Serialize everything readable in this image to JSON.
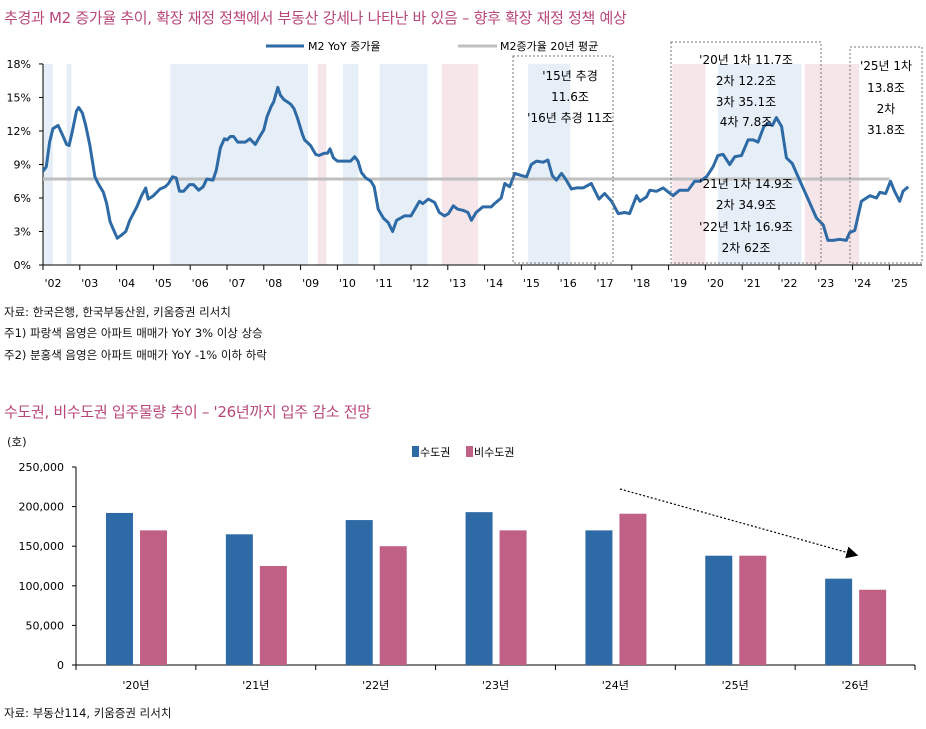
{
  "colors": {
    "title": "#b8477a",
    "m2_line": "#2e6aa6",
    "avg_line": "#bfbfbf",
    "shade_up": "#e6eef7",
    "shade_down": "#f6e6ea",
    "bar_capital": "#2e6aa6",
    "bar_noncapital": "#c06085"
  },
  "chart1": {
    "title": "추경과 M2 증가율 추이, 확장 재정 정책에서 부동산 강세나 나타난 바 있음 – 향후 확장 재정 정책 예상",
    "notes": [
      "자료: 한국은행, 한국부동산원, 키움증권 리서치",
      "주1) 파랑색 음영은 아파트 매매가 YoY 3% 이상 상승",
      "주2) 분홍색 음영은 아파트 매매가 YoY -1% 이하 하락"
    ],
    "annotations": {
      "box2015": [
        "'15년 추경",
        "11.6조",
        "'16년 추경 11조"
      ],
      "box2020_top": [
        "'20년 1차 11.7조",
        "2차 12.2조",
        "3차 35.1조",
        "4차 7.8조"
      ],
      "box2020_bottom": [
        "'21년 1차 14.9조",
        "2차 34.9조",
        "'22년 1차 16.9조",
        "2차 62조"
      ],
      "box2025": [
        "'25년 1차",
        "13.8조",
        "2차",
        "31.8조"
      ]
    }
  },
  "chart_data": [
    {
      "type": "line",
      "title": "",
      "xlabel": "",
      "ylabel": "",
      "xlim": [
        2002,
        2025.9
      ],
      "ylim": [
        0,
        18
      ],
      "x_tick_labels": [
        "'02",
        "'03",
        "'04",
        "'05",
        "'06",
        "'07",
        "'08",
        "'09",
        "'10",
        "'11",
        "'12",
        "'13",
        "'14",
        "'15",
        "'16",
        "'17",
        "'18",
        "'19",
        "'20",
        "'21",
        "'22",
        "'23",
        "'24",
        "'25"
      ],
      "y_tick_labels": [
        "0%",
        "3%",
        "6%",
        "9%",
        "12%",
        "15%",
        "18%"
      ],
      "y_ticks": [
        0,
        3,
        6,
        9,
        12,
        15,
        18
      ],
      "legend": {
        "placement": "top",
        "entries": [
          "M2 YoY 증가율",
          "M2증가율 20년 평균"
        ]
      },
      "series": [
        {
          "name": "M2 YoY 증가율",
          "points": [
            [
              2002.0,
              8.4
            ],
            [
              2002.09,
              8.8
            ],
            [
              2002.18,
              11.0
            ],
            [
              2002.27,
              12.2
            ],
            [
              2002.41,
              12.5
            ],
            [
              2002.55,
              11.5
            ],
            [
              2002.64,
              10.8
            ],
            [
              2002.71,
              10.7
            ],
            [
              2002.8,
              12.0
            ],
            [
              2002.91,
              13.8
            ],
            [
              2002.97,
              14.1
            ],
            [
              2003.07,
              13.6
            ],
            [
              2003.16,
              12.5
            ],
            [
              2003.27,
              10.8
            ],
            [
              2003.41,
              7.9
            ],
            [
              2003.5,
              7.3
            ],
            [
              2003.64,
              6.5
            ],
            [
              2003.73,
              5.5
            ],
            [
              2003.82,
              3.9
            ],
            [
              2003.91,
              3.2
            ],
            [
              2004.02,
              2.4
            ],
            [
              2004.14,
              2.7
            ],
            [
              2004.25,
              3.0
            ],
            [
              2004.36,
              4.0
            ],
            [
              2004.55,
              5.2
            ],
            [
              2004.68,
              6.2
            ],
            [
              2004.79,
              6.9
            ],
            [
              2004.86,
              5.9
            ],
            [
              2005.0,
              6.2
            ],
            [
              2005.18,
              6.8
            ],
            [
              2005.32,
              7.0
            ],
            [
              2005.41,
              7.3
            ],
            [
              2005.52,
              7.9
            ],
            [
              2005.62,
              7.8
            ],
            [
              2005.71,
              6.6
            ],
            [
              2005.82,
              6.6
            ],
            [
              2005.98,
              7.2
            ],
            [
              2006.09,
              7.2
            ],
            [
              2006.23,
              6.7
            ],
            [
              2006.35,
              7.0
            ],
            [
              2006.45,
              7.7
            ],
            [
              2006.62,
              7.6
            ],
            [
              2006.71,
              8.5
            ],
            [
              2006.82,
              10.5
            ],
            [
              2006.93,
              11.3
            ],
            [
              2007.0,
              11.2
            ],
            [
              2007.09,
              11.5
            ],
            [
              2007.18,
              11.5
            ],
            [
              2007.29,
              11.0
            ],
            [
              2007.5,
              11.0
            ],
            [
              2007.62,
              11.3
            ],
            [
              2007.77,
              10.8
            ],
            [
              2007.89,
              11.5
            ],
            [
              2008.0,
              12.1
            ],
            [
              2008.09,
              13.3
            ],
            [
              2008.2,
              14.2
            ],
            [
              2008.27,
              14.6
            ],
            [
              2008.38,
              15.9
            ],
            [
              2008.45,
              15.2
            ],
            [
              2008.55,
              14.8
            ],
            [
              2008.64,
              14.6
            ],
            [
              2008.73,
              14.4
            ],
            [
              2008.82,
              14.0
            ],
            [
              2008.91,
              13.2
            ],
            [
              2009.05,
              11.7
            ],
            [
              2009.11,
              11.2
            ],
            [
              2009.27,
              10.7
            ],
            [
              2009.41,
              9.9
            ],
            [
              2009.5,
              9.8
            ],
            [
              2009.64,
              10.0
            ],
            [
              2009.73,
              10.0
            ],
            [
              2009.8,
              10.4
            ],
            [
              2009.89,
              9.6
            ],
            [
              2010.0,
              9.3
            ],
            [
              2010.18,
              9.3
            ],
            [
              2010.36,
              9.3
            ],
            [
              2010.47,
              9.7
            ],
            [
              2010.56,
              9.3
            ],
            [
              2010.65,
              8.3
            ],
            [
              2010.77,
              7.8
            ],
            [
              2010.91,
              7.5
            ],
            [
              2011.0,
              7.0
            ],
            [
              2011.11,
              5.0
            ],
            [
              2011.25,
              4.2
            ],
            [
              2011.38,
              3.8
            ],
            [
              2011.5,
              3.0
            ],
            [
              2011.61,
              4.0
            ],
            [
              2011.82,
              4.4
            ],
            [
              2012.0,
              4.4
            ],
            [
              2012.14,
              5.2
            ],
            [
              2012.23,
              5.7
            ],
            [
              2012.32,
              5.5
            ],
            [
              2012.47,
              5.9
            ],
            [
              2012.64,
              5.6
            ],
            [
              2012.77,
              4.7
            ],
            [
              2012.91,
              4.4
            ],
            [
              2013.02,
              4.6
            ],
            [
              2013.15,
              5.3
            ],
            [
              2013.27,
              5.0
            ],
            [
              2013.41,
              4.9
            ],
            [
              2013.55,
              4.7
            ],
            [
              2013.64,
              4.0
            ],
            [
              2013.77,
              4.7
            ],
            [
              2013.95,
              5.2
            ],
            [
              2014.18,
              5.2
            ],
            [
              2014.27,
              5.5
            ],
            [
              2014.45,
              6.0
            ],
            [
              2014.55,
              7.3
            ],
            [
              2014.68,
              7.0
            ],
            [
              2014.82,
              8.2
            ],
            [
              2015.0,
              8.0
            ],
            [
              2015.14,
              7.9
            ],
            [
              2015.27,
              9.0
            ],
            [
              2015.41,
              9.3
            ],
            [
              2015.59,
              9.2
            ],
            [
              2015.72,
              9.4
            ],
            [
              2015.84,
              8.0
            ],
            [
              2015.95,
              7.6
            ],
            [
              2016.09,
              8.2
            ],
            [
              2016.22,
              7.6
            ],
            [
              2016.36,
              6.8
            ],
            [
              2016.49,
              6.9
            ],
            [
              2016.68,
              6.9
            ],
            [
              2016.9,
              7.3
            ],
            [
              2017.11,
              5.9
            ],
            [
              2017.26,
              6.4
            ],
            [
              2017.45,
              5.7
            ],
            [
              2017.63,
              4.6
            ],
            [
              2017.81,
              4.7
            ],
            [
              2017.94,
              4.6
            ],
            [
              2018.13,
              6.2
            ],
            [
              2018.22,
              5.7
            ],
            [
              2018.4,
              6.1
            ],
            [
              2018.49,
              6.7
            ],
            [
              2018.67,
              6.6
            ],
            [
              2018.85,
              6.9
            ],
            [
              2019.12,
              6.2
            ],
            [
              2019.3,
              6.7
            ],
            [
              2019.53,
              6.7
            ],
            [
              2019.71,
              7.5
            ],
            [
              2019.85,
              7.5
            ],
            [
              2020.03,
              7.9
            ],
            [
              2020.21,
              8.8
            ],
            [
              2020.34,
              9.8
            ],
            [
              2020.48,
              9.9
            ],
            [
              2020.66,
              9.0
            ],
            [
              2020.8,
              9.7
            ],
            [
              2020.98,
              9.8
            ],
            [
              2021.16,
              11.2
            ],
            [
              2021.3,
              11.2
            ],
            [
              2021.43,
              11.0
            ],
            [
              2021.59,
              12.4
            ],
            [
              2021.7,
              12.7
            ],
            [
              2021.82,
              12.5
            ],
            [
              2021.93,
              13.2
            ],
            [
              2022.07,
              12.4
            ],
            [
              2022.2,
              9.6
            ],
            [
              2022.36,
              9.1
            ],
            [
              2022.56,
              7.6
            ],
            [
              2022.79,
              5.9
            ],
            [
              2023.02,
              4.2
            ],
            [
              2023.2,
              3.6
            ],
            [
              2023.33,
              2.2
            ],
            [
              2023.47,
              2.2
            ],
            [
              2023.65,
              2.3
            ],
            [
              2023.83,
              2.2
            ],
            [
              2023.92,
              2.9
            ],
            [
              2024.06,
              3.1
            ],
            [
              2024.24,
              5.7
            ],
            [
              2024.47,
              6.2
            ],
            [
              2024.65,
              6.0
            ],
            [
              2024.74,
              6.5
            ],
            [
              2024.9,
              6.4
            ],
            [
              2025.03,
              7.5
            ],
            [
              2025.14,
              6.6
            ],
            [
              2025.28,
              5.7
            ],
            [
              2025.37,
              6.6
            ],
            [
              2025.51,
              7.0
            ]
          ]
        },
        {
          "name": "M2증가율 20년 평균",
          "value": 7.7,
          "x_range": [
            2002,
            2025
          ]
        }
      ],
      "shaded_periods": [
        {
          "kind": "up",
          "from": 2002.0,
          "to": 2002.27
        },
        {
          "kind": "up",
          "from": 2002.64,
          "to": 2002.77
        },
        {
          "kind": "up",
          "from": 2005.46,
          "to": 2009.2
        },
        {
          "kind": "down",
          "from": 2009.47,
          "to": 2009.7
        },
        {
          "kind": "up",
          "from": 2010.15,
          "to": 2010.57
        },
        {
          "kind": "up",
          "from": 2011.15,
          "to": 2012.45
        },
        {
          "kind": "down",
          "from": 2012.84,
          "to": 2013.82
        },
        {
          "kind": "up",
          "from": 2015.18,
          "to": 2016.33
        },
        {
          "kind": "down",
          "from": 2019.1,
          "to": 2020.0
        },
        {
          "kind": "up",
          "from": 2020.34,
          "to": 2022.61
        },
        {
          "kind": "down",
          "from": 2022.7,
          "to": 2024.18
        }
      ]
    },
    {
      "type": "bar",
      "title": "수도권, 비수도권 입주물량 추이 – '26년까지 입주 감소 전망",
      "unit_label": "(호)",
      "categories": [
        "'20년",
        "'21년",
        "'22년",
        "'23년",
        "'24년",
        "'25년",
        "'26년"
      ],
      "ylim": [
        0,
        250000
      ],
      "y_ticks": [
        0,
        50000,
        100000,
        150000,
        200000,
        250000
      ],
      "y_tick_labels": [
        "0",
        "50,000",
        "100,000",
        "150,000",
        "200,000",
        "250,000"
      ],
      "legend": {
        "placement": "top"
      },
      "series": [
        {
          "name": "수도권",
          "values": [
            192000,
            165000,
            183000,
            193000,
            170000,
            138000,
            109000
          ]
        },
        {
          "name": "비수도권",
          "values": [
            170000,
            125000,
            150000,
            170000,
            191000,
            138000,
            95000
          ]
        }
      ],
      "trend_arrow": "down",
      "source": "자료: 부동산114, 키움증권 리서치"
    }
  ]
}
